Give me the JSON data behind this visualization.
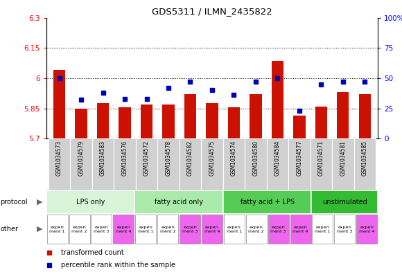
{
  "title": "GDS5311 / ILMN_2435822",
  "samples": [
    "GSM1034573",
    "GSM1034579",
    "GSM1034583",
    "GSM1034576",
    "GSM1034572",
    "GSM1034578",
    "GSM1034582",
    "GSM1034575",
    "GSM1034574",
    "GSM1034580",
    "GSM1034584",
    "GSM1034577",
    "GSM1034571",
    "GSM1034581",
    "GSM1034585"
  ],
  "red_values": [
    6.04,
    5.85,
    5.875,
    5.855,
    5.87,
    5.87,
    5.92,
    5.875,
    5.855,
    5.92,
    6.085,
    5.815,
    5.86,
    5.93,
    5.92
  ],
  "blue_values": [
    50,
    32,
    38,
    33,
    33,
    42,
    47,
    40,
    36,
    47,
    50,
    23,
    45,
    47,
    47
  ],
  "ylim_left": [
    5.7,
    6.3
  ],
  "ylim_right": [
    0,
    100
  ],
  "yticks_left": [
    5.7,
    5.85,
    6.0,
    6.15,
    6.3
  ],
  "yticks_left_labels": [
    "5.7",
    "5.85",
    "6",
    "6.15",
    "6.3"
  ],
  "yticks_right": [
    0,
    25,
    50,
    75,
    100
  ],
  "yticks_right_labels": [
    "0",
    "25",
    "50",
    "75",
    "100%"
  ],
  "hlines": [
    5.85,
    6.0,
    6.15
  ],
  "protocols": [
    {
      "label": "LPS only",
      "start": 0,
      "end": 4,
      "color": "#d9f5d9"
    },
    {
      "label": "fatty acid only",
      "start": 4,
      "end": 8,
      "color": "#aaeaaa"
    },
    {
      "label": "fatty acid + LPS",
      "start": 8,
      "end": 12,
      "color": "#55cc55"
    },
    {
      "label": "unstimulated",
      "start": 12,
      "end": 15,
      "color": "#33bb33"
    }
  ],
  "experiments": [
    {
      "label": "experi\nment 1",
      "color": "#ffffff"
    },
    {
      "label": "experi\nment 2",
      "color": "#ffffff"
    },
    {
      "label": "experi\nment 3",
      "color": "#ffffff"
    },
    {
      "label": "experi\nment 4",
      "color": "#ee66ee"
    },
    {
      "label": "experi\nment 1",
      "color": "#ffffff"
    },
    {
      "label": "experi\nment 2",
      "color": "#ffffff"
    },
    {
      "label": "experi\nment 3",
      "color": "#ee66ee"
    },
    {
      "label": "experi\nment 4",
      "color": "#ee66ee"
    },
    {
      "label": "experi\nment 1",
      "color": "#ffffff"
    },
    {
      "label": "experi\nment 2",
      "color": "#ffffff"
    },
    {
      "label": "experi\nment 3",
      "color": "#ee66ee"
    },
    {
      "label": "experi\nment 4",
      "color": "#ee66ee"
    },
    {
      "label": "experi\nment 1",
      "color": "#ffffff"
    },
    {
      "label": "experi\nment 3",
      "color": "#ffffff"
    },
    {
      "label": "experi\nment 4",
      "color": "#ee66ee"
    }
  ],
  "bar_color": "#cc1100",
  "dot_color": "#0000bb",
  "bar_width": 0.55,
  "plot_bg": "#ffffff",
  "fig_bg": "#ffffff"
}
